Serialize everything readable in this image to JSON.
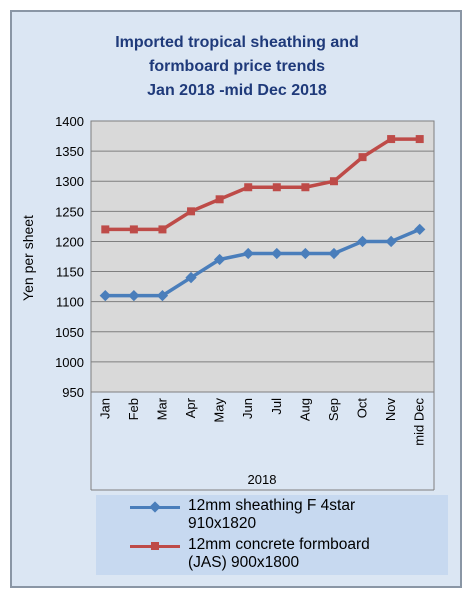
{
  "chart_data": {
    "type": "line",
    "title_lines": [
      "Imported tropical sheathing and",
      "formboard price trends",
      "Jan 2018 -mid Dec 2018"
    ],
    "xlabel": "2018",
    "ylabel": "Yen per sheet",
    "ylim": [
      950,
      1400
    ],
    "yticks": [
      950,
      1000,
      1050,
      1100,
      1150,
      1200,
      1250,
      1300,
      1350,
      1400
    ],
    "grid": true,
    "legend_position": "bottom",
    "categories": [
      "Jan",
      "Feb",
      "Mar",
      "Apr",
      "May",
      "Jun",
      "Jul",
      "Aug",
      "Sep",
      "Oct",
      "Nov",
      "mid Dec"
    ],
    "series": [
      {
        "name": "12mm sheathing F 4star 910x1820",
        "legend_lines": [
          "12mm sheathing F 4star",
          "910x1820"
        ],
        "color": "#4a7ebb",
        "marker": "diamond",
        "values": [
          1110,
          1110,
          1110,
          1140,
          1170,
          1180,
          1180,
          1180,
          1180,
          1200,
          1200,
          1220
        ]
      },
      {
        "name": "12mm concrete formboard (JAS) 900x1800",
        "legend_lines": [
          "12mm concrete formboard",
          "(JAS) 900x1800"
        ],
        "color": "#be4b48",
        "marker": "square",
        "values": [
          1220,
          1220,
          1220,
          1250,
          1270,
          1290,
          1290,
          1290,
          1300,
          1340,
          1370,
          1370
        ]
      }
    ]
  }
}
